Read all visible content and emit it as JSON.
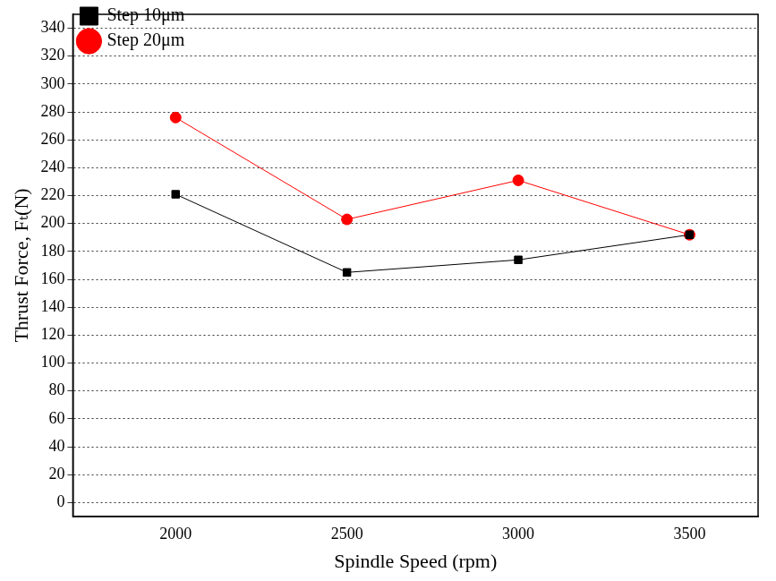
{
  "chart_data": {
    "type": "line",
    "x_label": "Spindle Speed (rpm)",
    "y_label": "Thrust Force, Fₜ(N)",
    "x": [
      2000,
      2500,
      3000,
      3500
    ],
    "series": [
      {
        "name": "Step 10μm",
        "color": "#000000",
        "marker": "square",
        "values": [
          221,
          165,
          174,
          192
        ]
      },
      {
        "name": "Step 20μm",
        "color": "#ff0000",
        "marker": "circle",
        "values": [
          276,
          203,
          231,
          192
        ]
      }
    ],
    "xlim": [
      1700,
      3700
    ],
    "xticks": [
      2000,
      2500,
      3000,
      3500
    ],
    "ylim": [
      -10,
      350
    ],
    "yticks": [
      0,
      20,
      40,
      60,
      80,
      100,
      120,
      140,
      160,
      180,
      200,
      220,
      240,
      260,
      280,
      300,
      320,
      340
    ],
    "grid": true,
    "legend": "upper left"
  }
}
